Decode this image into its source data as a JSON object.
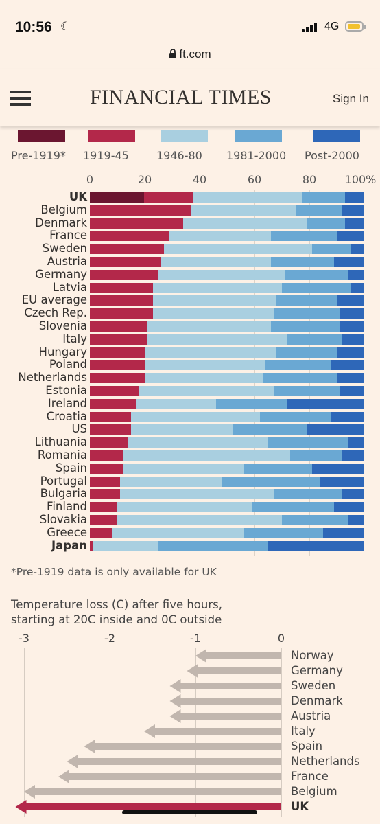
{
  "status_bar": {
    "time": "10:56",
    "network": "4G"
  },
  "browser": {
    "url": "ft.com"
  },
  "header": {
    "logo": "FINANCIAL TIMES",
    "sign_in": "Sign In"
  },
  "colors": {
    "pre1919": "#6b1630",
    "c1919_45": "#b3284a",
    "c1946_80": "#a9cfe0",
    "c1981_2000": "#6aa8d3",
    "post2000": "#2e67b8",
    "arrow_grey": "#c1b6ae",
    "arrow_uk": "#b3284a"
  },
  "chart_data": [
    {
      "type": "bar",
      "orientation": "horizontal",
      "stacked": true,
      "xlim": [
        0,
        100
      ],
      "ticks": [
        "0",
        "20",
        "40",
        "60",
        "80",
        "100%"
      ],
      "grid": true,
      "legend_placement": "top",
      "series_names": [
        "Pre-1919*",
        "1919-45",
        "1946-80",
        "1981-2000",
        "Post-2000"
      ],
      "rows": [
        {
          "label": "UK",
          "values": [
            20,
            18,
            40,
            16,
            7
          ]
        },
        {
          "label": "Belgium",
          "values": [
            0,
            37,
            38,
            17,
            8
          ]
        },
        {
          "label": "Denmark",
          "values": [
            0,
            34,
            45,
            14,
            7
          ]
        },
        {
          "label": "France",
          "values": [
            0,
            29,
            37,
            24,
            10
          ]
        },
        {
          "label": "Sweden",
          "values": [
            0,
            27,
            54,
            14,
            5
          ]
        },
        {
          "label": "Austria",
          "values": [
            0,
            26,
            40,
            23,
            11
          ]
        },
        {
          "label": "Germany",
          "values": [
            0,
            25,
            46,
            23,
            6
          ]
        },
        {
          "label": "Latvia",
          "values": [
            0,
            23,
            47,
            25,
            5
          ]
        },
        {
          "label": "EU average",
          "values": [
            0,
            23,
            45,
            22,
            10
          ]
        },
        {
          "label": "Czech Rep.",
          "values": [
            0,
            23,
            44,
            24,
            9
          ]
        },
        {
          "label": "Slovenia",
          "values": [
            0,
            21,
            45,
            25,
            9
          ]
        },
        {
          "label": "Italy",
          "values": [
            0,
            21,
            51,
            20,
            8
          ]
        },
        {
          "label": "Hungary",
          "values": [
            0,
            20,
            48,
            22,
            10
          ]
        },
        {
          "label": "Poland",
          "values": [
            0,
            20,
            44,
            24,
            12
          ]
        },
        {
          "label": "Netherlands",
          "values": [
            0,
            20,
            43,
            27,
            10
          ]
        },
        {
          "label": "Estonia",
          "values": [
            0,
            18,
            49,
            24,
            9
          ]
        },
        {
          "label": "Ireland",
          "values": [
            0,
            17,
            29,
            26,
            28
          ]
        },
        {
          "label": "Croatia",
          "values": [
            0,
            15,
            47,
            26,
            12
          ]
        },
        {
          "label": "US",
          "values": [
            0,
            15,
            37,
            27,
            21
          ]
        },
        {
          "label": "Lithuania",
          "values": [
            0,
            14,
            51,
            29,
            6
          ]
        },
        {
          "label": "Romania",
          "values": [
            0,
            12,
            61,
            19,
            8
          ]
        },
        {
          "label": "Spain",
          "values": [
            0,
            12,
            44,
            25,
            19
          ]
        },
        {
          "label": "Portugal",
          "values": [
            0,
            11,
            37,
            36,
            16
          ]
        },
        {
          "label": "Bulgaria",
          "values": [
            0,
            11,
            56,
            25,
            8
          ]
        },
        {
          "label": "Finland",
          "values": [
            0,
            10,
            49,
            30,
            11
          ]
        },
        {
          "label": "Slovakia",
          "values": [
            0,
            10,
            60,
            24,
            6
          ]
        },
        {
          "label": "Greece",
          "values": [
            0,
            8,
            48,
            29,
            15
          ]
        },
        {
          "label": "Japan",
          "values": [
            0,
            1,
            24,
            40,
            35
          ]
        }
      ],
      "footnote": "*Pre-1919 data is only available for UK"
    },
    {
      "type": "bar",
      "orientation": "horizontal",
      "marker": "arrow",
      "subtitle_line1": "Temperature loss (C) after five hours,",
      "subtitle_line2": "starting at 20C inside and 0C outside",
      "xlim": [
        -3,
        0
      ],
      "ticks": [
        "-3",
        "-2",
        "-1",
        "0"
      ],
      "tick_values": [
        -3,
        -2,
        -1,
        0
      ],
      "rows": [
        {
          "label": "Norway",
          "value": -1.0
        },
        {
          "label": "Germany",
          "value": -1.1
        },
        {
          "label": "Sweden",
          "value": -1.3
        },
        {
          "label": "Denmark",
          "value": -1.3
        },
        {
          "label": "Austria",
          "value": -1.3
        },
        {
          "label": "Italy",
          "value": -1.6
        },
        {
          "label": "Spain",
          "value": -2.3
        },
        {
          "label": "Netherlands",
          "value": -2.5
        },
        {
          "label": "France",
          "value": -2.6
        },
        {
          "label": "Belgium",
          "value": -3.0
        },
        {
          "label": "UK",
          "value": -3.1,
          "highlight": true
        }
      ]
    }
  ]
}
